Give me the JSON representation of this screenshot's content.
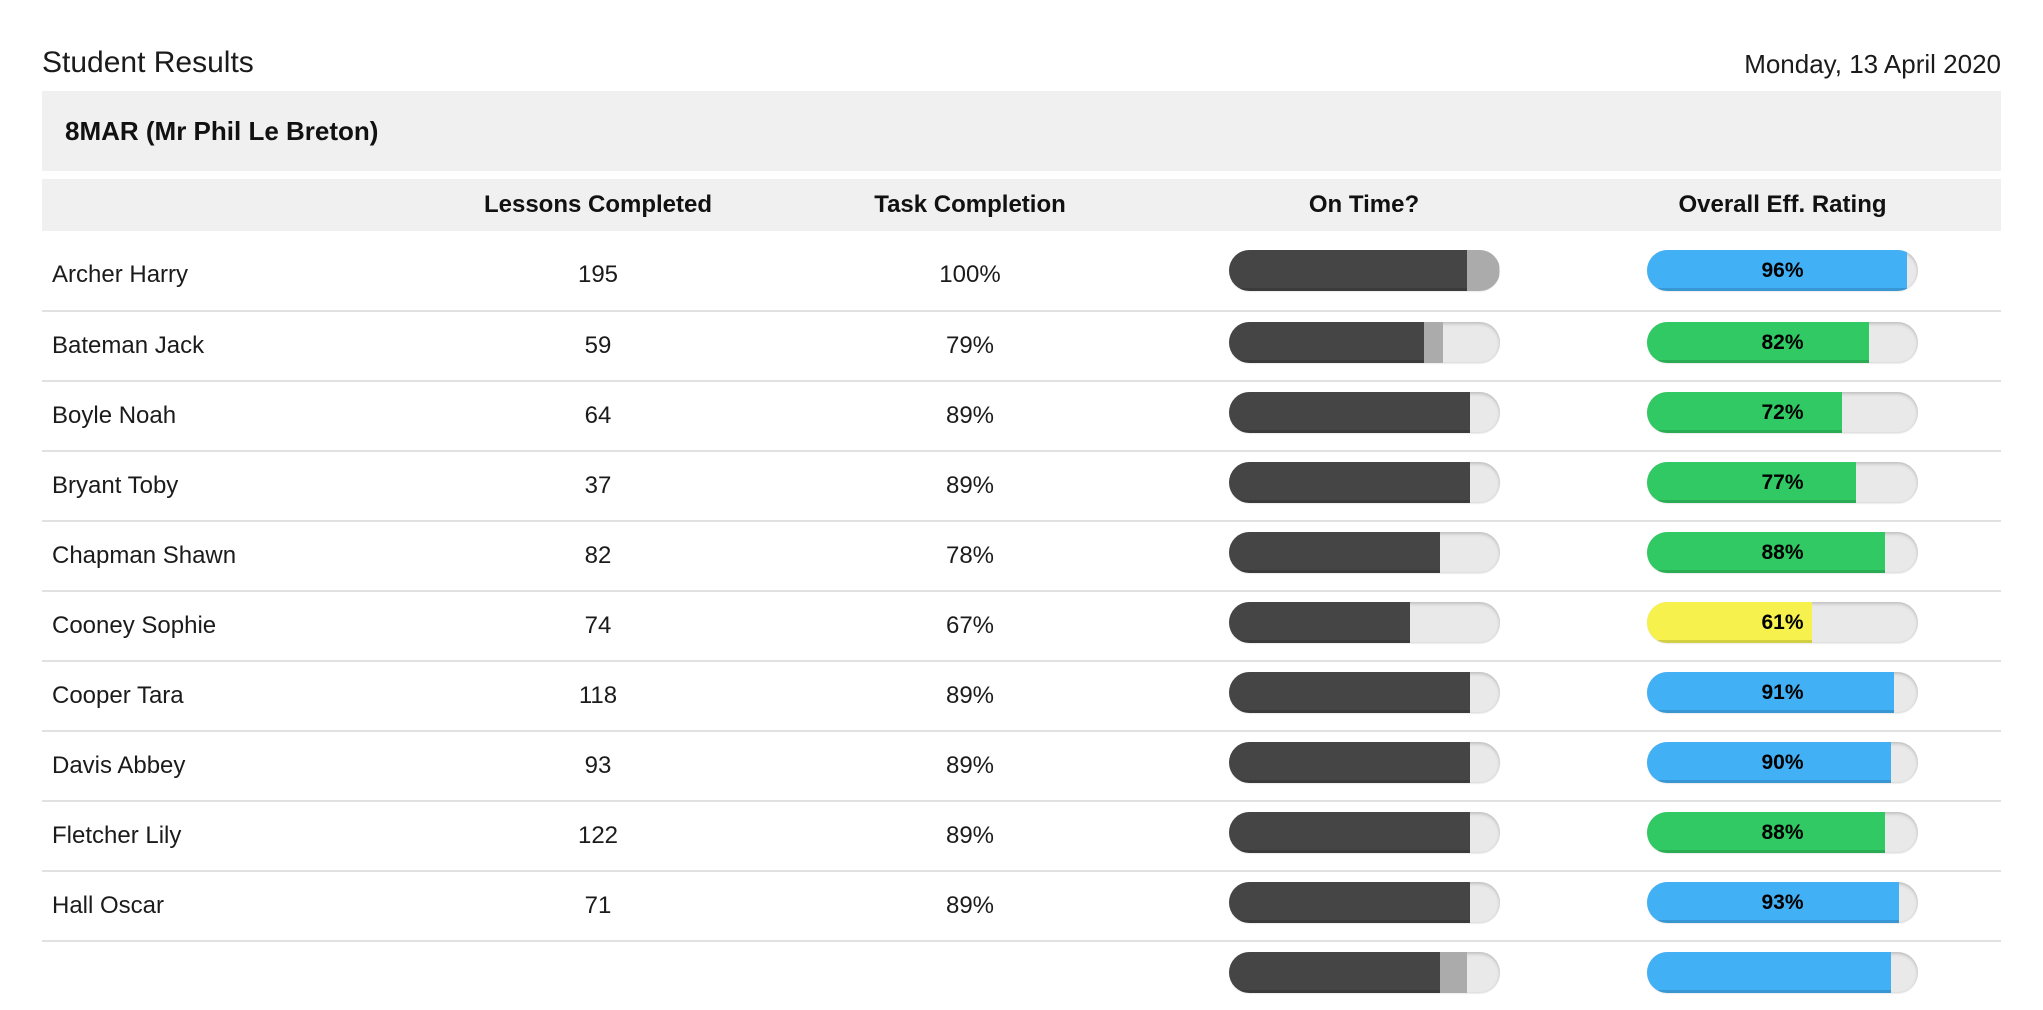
{
  "page": {
    "title": "Student Results",
    "date": "Monday, 13 April 2020",
    "group_header": "8MAR (Mr Phil Le Breton)"
  },
  "table": {
    "columns": {
      "name": "",
      "lessons": "Lessons Completed",
      "task": "Task Completion",
      "on_time": "On Time?",
      "rating": "Overall Eff. Rating"
    },
    "rows": [
      {
        "name": "Archer Harry",
        "lessons": "195",
        "task": "100%",
        "on_time_pct": 88,
        "late_pct": 12,
        "rating_pct": 96,
        "rating_label": "96%",
        "rating_color": "blue"
      },
      {
        "name": "Bateman Jack",
        "lessons": "59",
        "task": "79%",
        "on_time_pct": 72,
        "late_pct": 7,
        "rating_pct": 82,
        "rating_label": "82%",
        "rating_color": "green"
      },
      {
        "name": "Boyle Noah",
        "lessons": "64",
        "task": "89%",
        "on_time_pct": 89,
        "late_pct": 0,
        "rating_pct": 72,
        "rating_label": "72%",
        "rating_color": "green"
      },
      {
        "name": "Bryant Toby",
        "lessons": "37",
        "task": "89%",
        "on_time_pct": 89,
        "late_pct": 0,
        "rating_pct": 77,
        "rating_label": "77%",
        "rating_color": "green"
      },
      {
        "name": "Chapman Shawn",
        "lessons": "82",
        "task": "78%",
        "on_time_pct": 78,
        "late_pct": 0,
        "rating_pct": 88,
        "rating_label": "88%",
        "rating_color": "green"
      },
      {
        "name": "Cooney Sophie",
        "lessons": "74",
        "task": "67%",
        "on_time_pct": 67,
        "late_pct": 0,
        "rating_pct": 61,
        "rating_label": "61%",
        "rating_color": "yellow"
      },
      {
        "name": "Cooper Tara",
        "lessons": "118",
        "task": "89%",
        "on_time_pct": 89,
        "late_pct": 0,
        "rating_pct": 91,
        "rating_label": "91%",
        "rating_color": "blue"
      },
      {
        "name": "Davis Abbey",
        "lessons": "93",
        "task": "89%",
        "on_time_pct": 89,
        "late_pct": 0,
        "rating_pct": 90,
        "rating_label": "90%",
        "rating_color": "blue"
      },
      {
        "name": "Fletcher Lily",
        "lessons": "122",
        "task": "89%",
        "on_time_pct": 89,
        "late_pct": 0,
        "rating_pct": 88,
        "rating_label": "88%",
        "rating_color": "green"
      },
      {
        "name": "Hall Oscar",
        "lessons": "71",
        "task": "89%",
        "on_time_pct": 89,
        "late_pct": 0,
        "rating_pct": 93,
        "rating_label": "93%",
        "rating_color": "blue"
      },
      {
        "name": "",
        "lessons": "",
        "task": "",
        "on_time_pct": 78,
        "late_pct": 10,
        "rating_pct": 90,
        "rating_label": "",
        "rating_color": "blue"
      }
    ]
  },
  "colors": {
    "blue": "#42b0f5",
    "green": "#31c964",
    "yellow": "#f6f14d",
    "on_time_dark": "#454545",
    "late_gray": "#ababab",
    "track": "#e9e9e9",
    "band_gray": "#f0f0f0",
    "divider": "#e1e1e1"
  }
}
